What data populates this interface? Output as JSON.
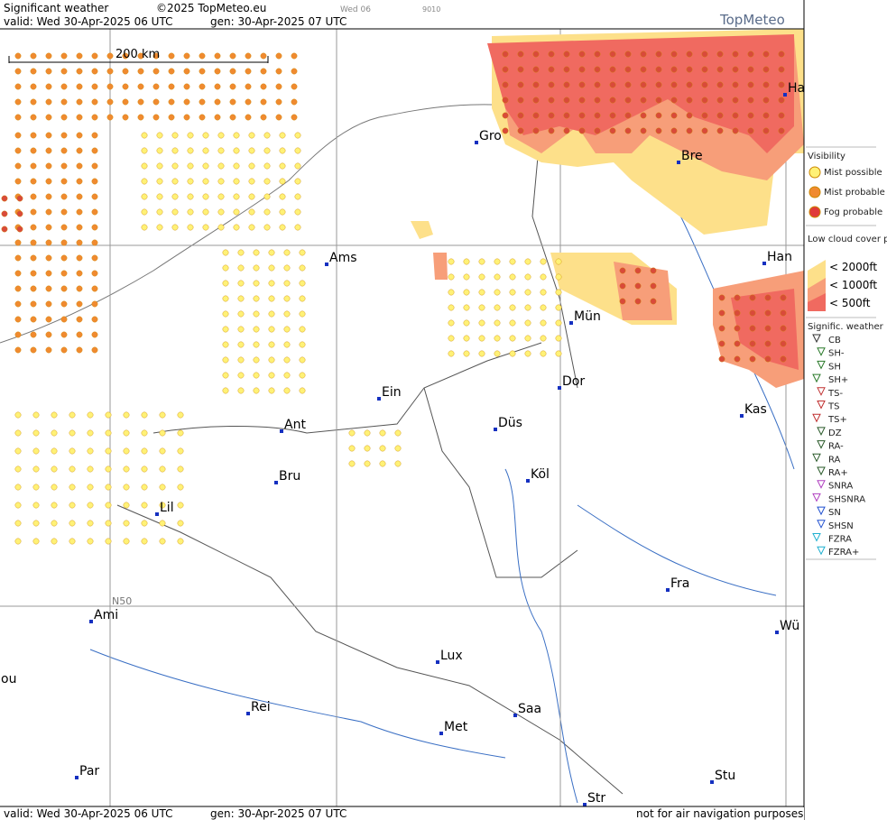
{
  "header": {
    "title": "Significant weather",
    "copyright": "©2025 TopMeteo.eu",
    "run": "Wed 06",
    "code": "9010",
    "brand": "TopMeteo",
    "valid": "valid:  Wed  30-Apr-2025  06 UTC",
    "gen": "gen:  30-Apr-2025  07 UTC"
  },
  "map": {
    "scale": "200 km",
    "grid_label": "N50",
    "cities": [
      "Gro",
      "Bre",
      "Ha",
      "Ams",
      "Han",
      "Mün",
      "Dor",
      "Ein",
      "Ant",
      "Düs",
      "Kas",
      "Bru",
      "Köl",
      "Lil",
      "Fra",
      "Ami",
      "Wü",
      "Lux",
      "ou",
      "Rei",
      "Saa",
      "Met",
      "Par",
      "Stu",
      "Str"
    ]
  },
  "legend": {
    "visibility": {
      "title": "Visibility",
      "items": [
        "Mist possible",
        "Mist probable",
        "Fog probable"
      ]
    },
    "low_cloud": {
      "title": "Low cloud cover probable",
      "items": [
        "< 2000ft",
        "< 1000ft",
        "<  500ft"
      ]
    },
    "weather": {
      "title": "Signific. weather",
      "items": [
        "CB",
        "SH-",
        "SH",
        "SH+",
        "TS-",
        "TS",
        "TS+",
        "DZ",
        "RA-",
        "RA",
        "RA+",
        "SNRA",
        "SHSNRA",
        "SN",
        "SHSN",
        "FZRA",
        "FZRA+"
      ]
    }
  },
  "footer": {
    "valid": "valid:  Wed  30-Apr-2025  06 UTC",
    "gen": "gen: 30-Apr-2025 07 UTC",
    "note": "not for air navigation purposes"
  }
}
